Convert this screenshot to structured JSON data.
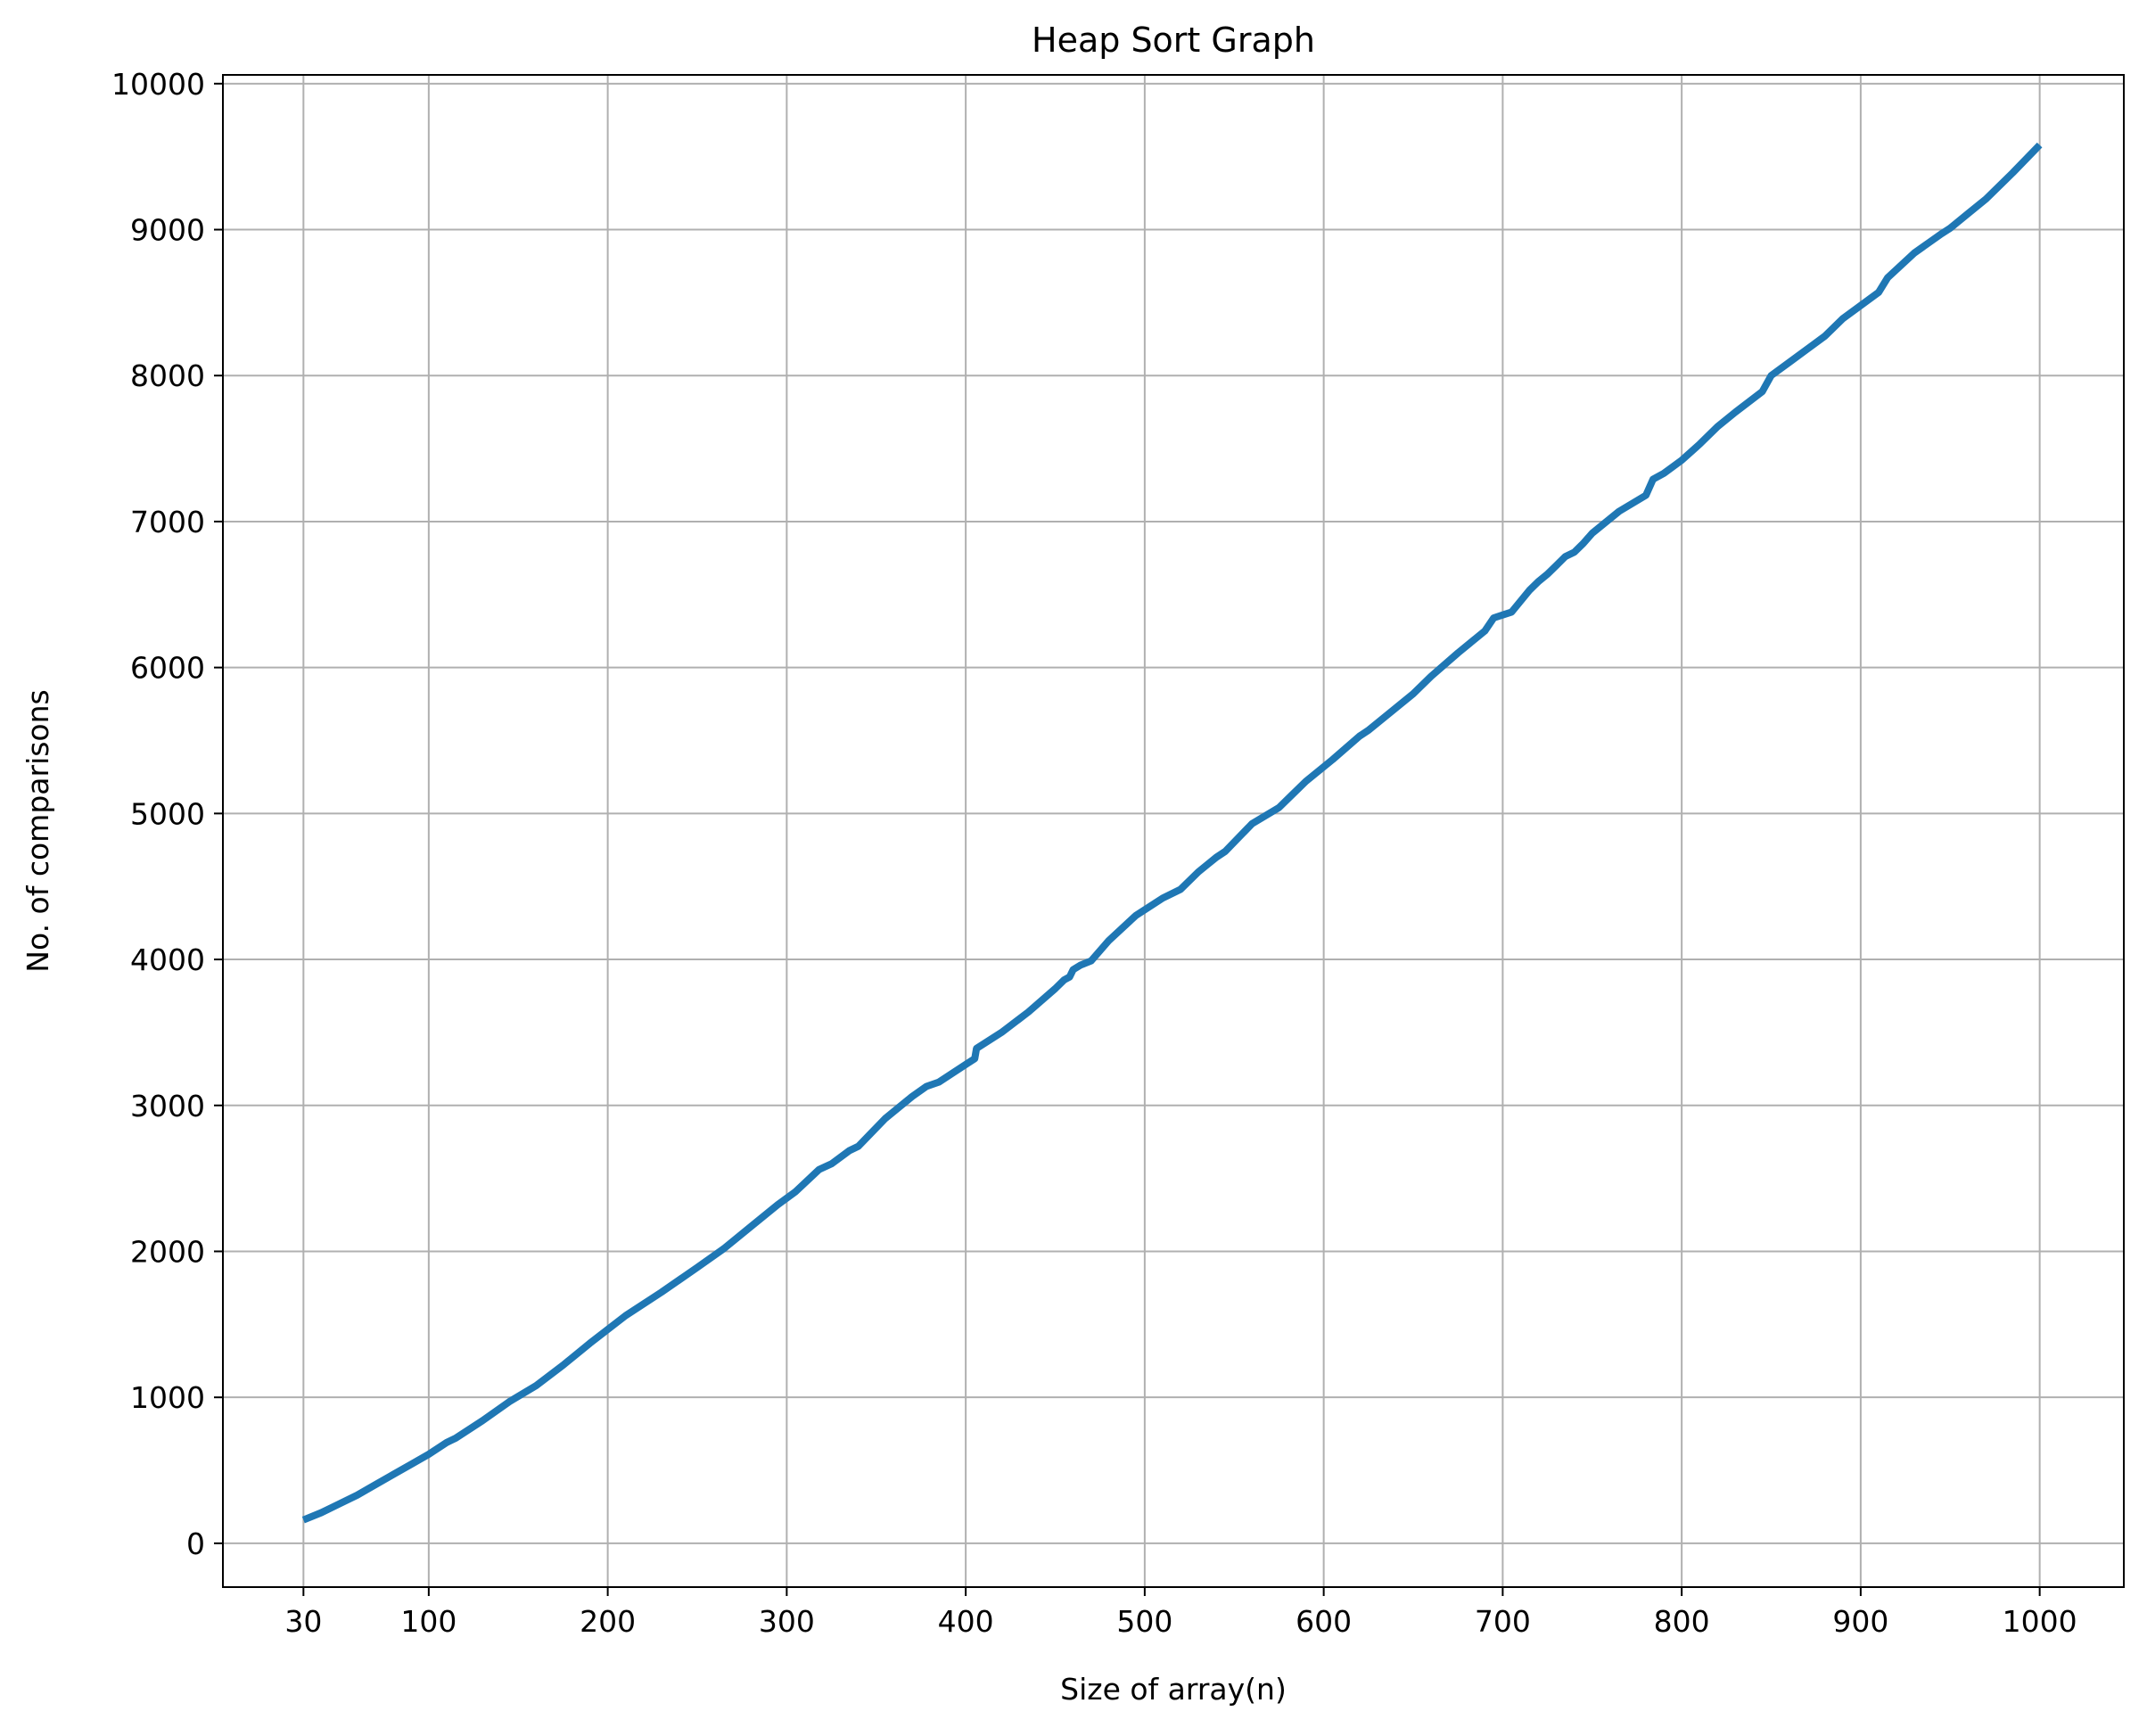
{
  "chart_data": {
    "type": "line",
    "title": "Heap Sort Graph",
    "xlabel": "Size of array(n)",
    "ylabel": "No. of comparisons",
    "xlim": [
      -15,
      1047
    ],
    "ylim": [
      -300,
      10060
    ],
    "x_ticks": [
      30,
      100,
      200,
      300,
      400,
      500,
      600,
      700,
      800,
      900,
      1000
    ],
    "y_ticks": [
      0,
      1000,
      2000,
      3000,
      4000,
      5000,
      6000,
      7000,
      8000,
      9000,
      10000
    ],
    "grid": true,
    "legend": "none",
    "series": [
      {
        "color": "#1f77b4",
        "x": [
          30,
          40,
          50,
          60,
          70,
          80,
          90,
          100,
          110,
          115,
          130,
          145,
          160,
          175,
          190,
          210,
          230,
          250,
          265,
          280,
          295,
          305,
          318,
          325,
          335,
          340,
          355,
          370,
          378,
          385,
          400,
          405,
          406,
          420,
          435,
          450,
          455,
          458,
          460,
          464,
          470,
          480,
          495,
          510,
          520,
          530,
          535,
          540,
          545,
          560,
          575,
          590,
          605,
          620,
          625,
          640,
          650,
          660,
          675,
          690,
          695,
          700,
          705,
          715,
          720,
          725,
          730,
          735,
          740,
          745,
          750,
          765,
          780,
          784,
          790,
          800,
          810,
          820,
          830,
          845,
          850,
          860,
          880,
          890,
          910,
          915,
          930,
          945,
          950,
          960,
          970,
          985,
          1000
        ],
        "y": [
          160,
          210,
          270,
          330,
          400,
          470,
          540,
          610,
          690,
          720,
          840,
          970,
          1080,
          1220,
          1370,
          1560,
          1720,
          1890,
          2020,
          2170,
          2320,
          2410,
          2560,
          2600,
          2690,
          2720,
          2910,
          3060,
          3130,
          3160,
          3280,
          3320,
          3390,
          3500,
          3640,
          3800,
          3860,
          3880,
          3930,
          3960,
          3990,
          4130,
          4300,
          4420,
          4480,
          4600,
          4650,
          4700,
          4740,
          4930,
          5040,
          5220,
          5370,
          5530,
          5570,
          5720,
          5820,
          5940,
          6100,
          6250,
          6340,
          6360,
          6380,
          6530,
          6590,
          6640,
          6700,
          6760,
          6790,
          6850,
          6920,
          7070,
          7180,
          7290,
          7330,
          7420,
          7530,
          7650,
          7750,
          7890,
          8000,
          8090,
          8270,
          8390,
          8570,
          8670,
          8840,
          8970,
          9010,
          9110,
          9210,
          9390,
          9580
        ]
      }
    ]
  }
}
